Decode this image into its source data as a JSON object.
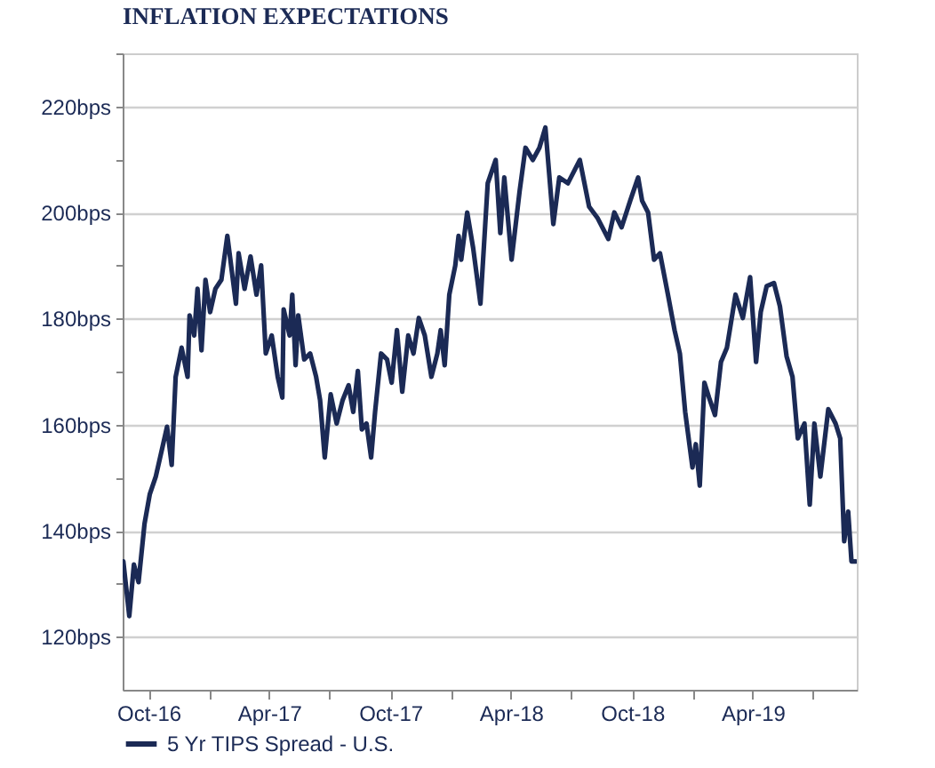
{
  "chart_data": {
    "type": "line",
    "title": "INFLATION EXPECTATIONS",
    "x": [
      "2016-08-24",
      "2016-09-02",
      "2016-09-09",
      "2016-09-16",
      "2016-09-25",
      "2016-10-03",
      "2016-10-12",
      "2016-10-22",
      "2016-10-29",
      "2016-11-05",
      "2016-11-11",
      "2016-11-20",
      "2016-11-29",
      "2016-12-02",
      "2016-12-09",
      "2016-12-14",
      "2016-12-20",
      "2016-12-26",
      "2017-01-02",
      "2017-01-10",
      "2017-01-19",
      "2017-01-28",
      "2017-02-10",
      "2017-02-14",
      "2017-02-23",
      "2017-03-04",
      "2017-03-13",
      "2017-03-20",
      "2017-03-27",
      "2017-04-05",
      "2017-04-14",
      "2017-04-21",
      "2017-04-23",
      "2017-05-02",
      "2017-05-06",
      "2017-05-11",
      "2017-05-15",
      "2017-05-24",
      "2017-06-02",
      "2017-06-11",
      "2017-06-17",
      "2017-06-24",
      "2017-07-03",
      "2017-07-12",
      "2017-07-21",
      "2017-07-30",
      "2017-08-06",
      "2017-08-13",
      "2017-08-19",
      "2017-08-26",
      "2017-09-02",
      "2017-09-08",
      "2017-09-17",
      "2017-09-26",
      "2017-10-03",
      "2017-10-11",
      "2017-10-19",
      "2017-10-28",
      "2017-11-05",
      "2017-11-13",
      "2017-11-22",
      "2017-12-02",
      "2017-12-11",
      "2017-12-16",
      "2017-12-22",
      "2017-12-29",
      "2018-01-07",
      "2018-01-12",
      "2018-01-16",
      "2018-01-25",
      "2018-02-03",
      "2018-02-14",
      "2018-02-25",
      "2018-03-09",
      "2018-03-16",
      "2018-03-22",
      "2018-04-02",
      "2018-04-14",
      "2018-04-23",
      "2018-05-04",
      "2018-05-14",
      "2018-05-23",
      "2018-06-04",
      "2018-06-13",
      "2018-06-26",
      "2018-07-14",
      "2018-07-28",
      "2018-08-10",
      "2018-08-26",
      "2018-09-04",
      "2018-09-15",
      "2018-09-28",
      "2018-10-10",
      "2018-10-16",
      "2018-10-25",
      "2018-11-03",
      "2018-11-12",
      "2018-11-24",
      "2018-12-04",
      "2018-12-12",
      "2018-12-20",
      "2018-12-31",
      "2019-01-05",
      "2019-01-11",
      "2019-01-18",
      "2019-01-25",
      "2019-02-03",
      "2019-02-12",
      "2019-02-21",
      "2019-03-06",
      "2019-03-17",
      "2019-03-28",
      "2019-04-06",
      "2019-04-13",
      "2019-04-22",
      "2019-05-03",
      "2019-05-12",
      "2019-05-22",
      "2019-05-31",
      "2019-06-08",
      "2019-06-18",
      "2019-06-26",
      "2019-07-03",
      "2019-07-12",
      "2019-07-24",
      "2019-08-04",
      "2019-08-11",
      "2019-08-17",
      "2019-08-23",
      "2019-08-28",
      "2019-09-03"
    ],
    "series": [
      {
        "name": "5 Yr TIPS Spread - U.S.",
        "color": "#1b2a55",
        "values": [
          134.2,
          123.9,
          133.6,
          130.3,
          141.3,
          146.9,
          150.2,
          155.7,
          159.6,
          152.4,
          169.0,
          174.5,
          169.0,
          180.6,
          176.8,
          185.6,
          174.0,
          187.3,
          181.2,
          185.6,
          187.3,
          195.6,
          182.8,
          192.3,
          185.6,
          191.7,
          184.5,
          190.0,
          173.4,
          176.8,
          169.0,
          165.1,
          181.7,
          176.8,
          184.5,
          171.2,
          180.6,
          172.3,
          173.4,
          169.0,
          164.6,
          153.8,
          165.7,
          160.2,
          164.6,
          167.4,
          162.4,
          170.1,
          159.1,
          160.2,
          153.8,
          162.4,
          173.4,
          172.3,
          167.9,
          177.8,
          166.2,
          176.8,
          173.4,
          180.1,
          176.8,
          169.0,
          173.4,
          177.8,
          171.2,
          184.5,
          190.0,
          195.6,
          191.1,
          200.0,
          193.3,
          182.8,
          205.5,
          209.9,
          196.1,
          206.6,
          191.1,
          203.9,
          212.2,
          209.9,
          212.2,
          216.0,
          197.8,
          206.6,
          205.5,
          209.9,
          201.1,
          198.9,
          195.0,
          200.0,
          197.2,
          202.2,
          206.6,
          202.2,
          200.0,
          191.1,
          192.3,
          184.5,
          177.8,
          173.4,
          162.4,
          151.9,
          156.3,
          148.5,
          167.9,
          165.1,
          161.8,
          171.8,
          174.5,
          184.5,
          180.1,
          187.8,
          171.8,
          181.2,
          186.1,
          186.7,
          182.3,
          172.9,
          169.0,
          157.4,
          160.2,
          144.9,
          160.2,
          150.2,
          162.9,
          160.2,
          157.4,
          138.0,
          143.6,
          134.2,
          134.2
        ]
      }
    ],
    "xlim": [
      "2016-08-23",
      "2019-09-05"
    ],
    "xticks": [
      {
        "value": "2016-10-01",
        "label": "Oct-16"
      },
      {
        "value": "2017-01-01",
        "label": null
      },
      {
        "value": "2017-04-01",
        "label": "Apr-17"
      },
      {
        "value": "2017-07-01",
        "label": null
      },
      {
        "value": "2017-10-01",
        "label": "Oct-17"
      },
      {
        "value": "2018-01-01",
        "label": null
      },
      {
        "value": "2018-04-01",
        "label": "Apr-18"
      },
      {
        "value": "2018-07-01",
        "label": null
      },
      {
        "value": "2018-10-01",
        "label": "Oct-18"
      },
      {
        "value": "2019-01-01",
        "label": null
      },
      {
        "value": "2019-04-01",
        "label": "Apr-19"
      },
      {
        "value": "2019-07-01",
        "label": null
      }
    ],
    "ylim": [
      110,
      230
    ],
    "yticks": [
      {
        "value": 120,
        "label": "120bps"
      },
      {
        "value": 130,
        "label": null
      },
      {
        "value": 140,
        "label": "140bps"
      },
      {
        "value": 150,
        "label": null
      },
      {
        "value": 160,
        "label": "160bps"
      },
      {
        "value": 170,
        "label": null
      },
      {
        "value": 180,
        "label": "180bps"
      },
      {
        "value": 190,
        "label": null
      },
      {
        "value": 200,
        "label": "200bps"
      },
      {
        "value": 210,
        "label": null
      },
      {
        "value": 220,
        "label": "220bps"
      },
      {
        "value": 230,
        "label": null
      }
    ],
    "grid": "y",
    "legend": "bottom"
  }
}
